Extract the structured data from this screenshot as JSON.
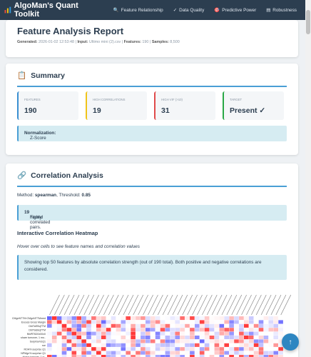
{
  "navbar": {
    "brand": "AlgoMan's Quant Toolkit",
    "items": [
      {
        "label": "Feature Relationship",
        "icon": "🔍"
      },
      {
        "label": "Data Quality",
        "icon": "✓"
      },
      {
        "label": "Predictive Power",
        "icon": "🎯"
      },
      {
        "label": "Robustness",
        "icon": "▤"
      }
    ]
  },
  "report": {
    "title": "Feature Analysis Report",
    "generated_label": "Generated:",
    "generated_value": "2026-01-02 12:53:48",
    "input_label": "Input:",
    "input_value": "Ultimo mini (2).csv",
    "features_label": "Features:",
    "features_value": "190",
    "samples_label": "Samples:",
    "samples_value": "8,500"
  },
  "summary": {
    "icon": "📋",
    "title": "Summary",
    "metrics": [
      {
        "label": "Features",
        "value": "190",
        "color": "#3a8fd1"
      },
      {
        "label": "High Correlations",
        "value": "19",
        "color": "#f0c419"
      },
      {
        "label": "High VIF (>10)",
        "value": "31",
        "color": "#e04b4b"
      },
      {
        "label": "Target",
        "value": "Present ✓",
        "color": "#28a745"
      }
    ],
    "normalization_label": "Normalization:",
    "normalization_value": "Z-Score"
  },
  "correlation": {
    "icon": "🔗",
    "title": "Correlation Analysis",
    "method_label": "Method:",
    "method_value": "spearman",
    "threshold_label": "Threshold:",
    "threshold_value": "0.85",
    "found_prefix": "Found",
    "found_count": "19",
    "found_suffix": "highly correlated pairs.",
    "heatmap_title": "Interactive Correlation Heatmap",
    "hover_hint": "Hover over cells to see feature names and correlation values",
    "top_info": "Showing top 50 features by absolute correlation strength (out of 190 total). Both positive and negative correlations are considered.",
    "row_labels": [
      "CMgnNTTM:CMgnNTTMmed",
      "Excess Gross Margin",
      "DbtToEBqTTM",
      "DbtToEBqTTM",
      "NWRT620x00x0",
      "share turnover, 1 mo..",
      "SurpriseVsQ1",
      "roe",
      "ROA% surprise Q1",
      "NPMgn% surprise Q1",
      "share turnover, 1 w.."
    ]
  },
  "fab": {
    "icon": "↑"
  }
}
